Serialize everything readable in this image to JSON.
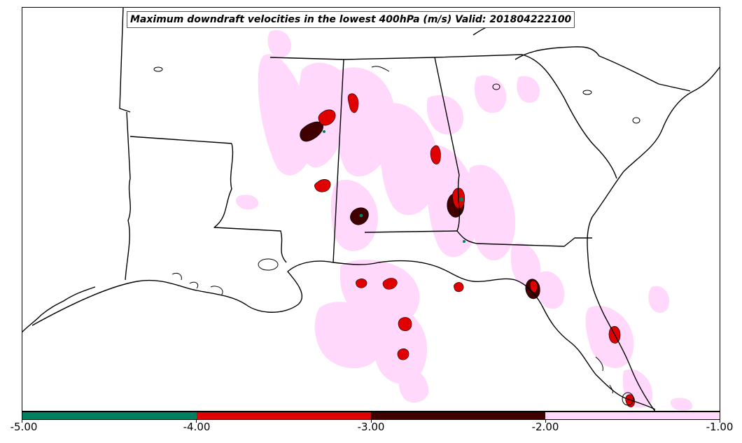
{
  "title": "Maximum downdraft velocities in the lowest 400hPa (m/s) Valid: 201804222100",
  "legend": {
    "bins": [
      {
        "range": [
          -5.0,
          -4.0
        ],
        "color": "#008060"
      },
      {
        "range": [
          -4.0,
          -3.0
        ],
        "color": "#e00000"
      },
      {
        "range": [
          -3.0,
          -2.0
        ],
        "color": "#400000"
      },
      {
        "range": [
          -2.0,
          -1.0
        ],
        "color": "#ffd8fb"
      }
    ],
    "tick_labels": [
      "-5.00",
      "-4.00",
      "-3.00",
      "-2.00",
      "-1.00"
    ]
  },
  "colors": {
    "light_downdraft": "#ffd8fb",
    "strong_downdraft": "#e00000",
    "very_strong_downdraft": "#400000",
    "extreme_downdraft": "#008060",
    "boundaries": "#000000"
  }
}
